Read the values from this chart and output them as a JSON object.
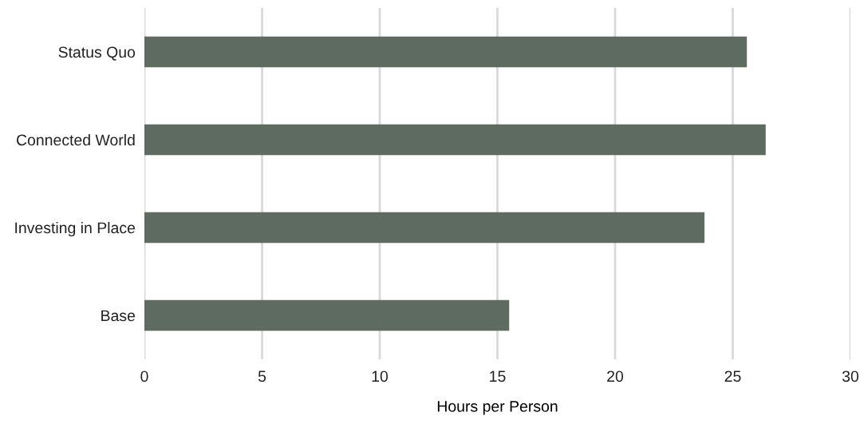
{
  "chart_data": {
    "type": "bar",
    "orientation": "horizontal",
    "xlabel": "Hours per Person",
    "categories": [
      "Status Quo",
      "Connected World",
      "Investing in Place",
      "Base"
    ],
    "values": [
      25.6,
      26.4,
      23.8,
      15.5
    ],
    "color": "#5d6b60",
    "xlim": [
      0,
      30
    ],
    "xticks": [
      0,
      5,
      10,
      15,
      20,
      25,
      30
    ],
    "grid": "x",
    "legend": false
  }
}
